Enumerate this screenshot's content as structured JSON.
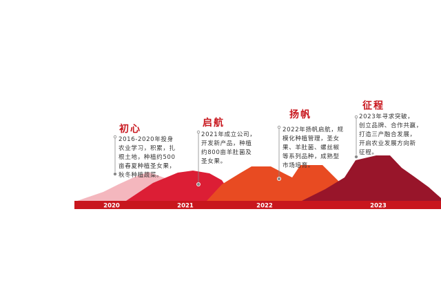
{
  "colors": {
    "accent": "#c8161d",
    "stage1": "#f4b7be",
    "stage2": "#dc1e35",
    "stage3": "#e84b22",
    "stage4": "#98152a",
    "axis": "#c8161d",
    "title": "#c8161d"
  },
  "stages": [
    {
      "title": "初心",
      "year": "2020",
      "lines": [
        "2016-2020年投身",
        "农业学习，积累，扎",
        "根土地，种植约500",
        "亩春夏种植圣女果，",
        "秋冬种植蔬菜。"
      ]
    },
    {
      "title": "启航",
      "year": "2021",
      "lines": [
        "2021年成立公司，",
        "开发新产品，种植",
        "约800亩羊肚菌及",
        "圣女果。"
      ]
    },
    {
      "title": "扬帆",
      "year": "2022",
      "lines": [
        "2022年扬帆启航，规",
        "模化种植管理，圣女",
        "果、羊肚菌、螺丝椒",
        "等系列品种，成熟型",
        "市场培育。"
      ]
    },
    {
      "title": "征程",
      "year": "2023",
      "lines": [
        "2023年寻求突破，",
        "创立品牌、合作共赢，",
        "打造三产融合发展，",
        "开启农业发展方向新",
        "征程。"
      ]
    }
  ]
}
